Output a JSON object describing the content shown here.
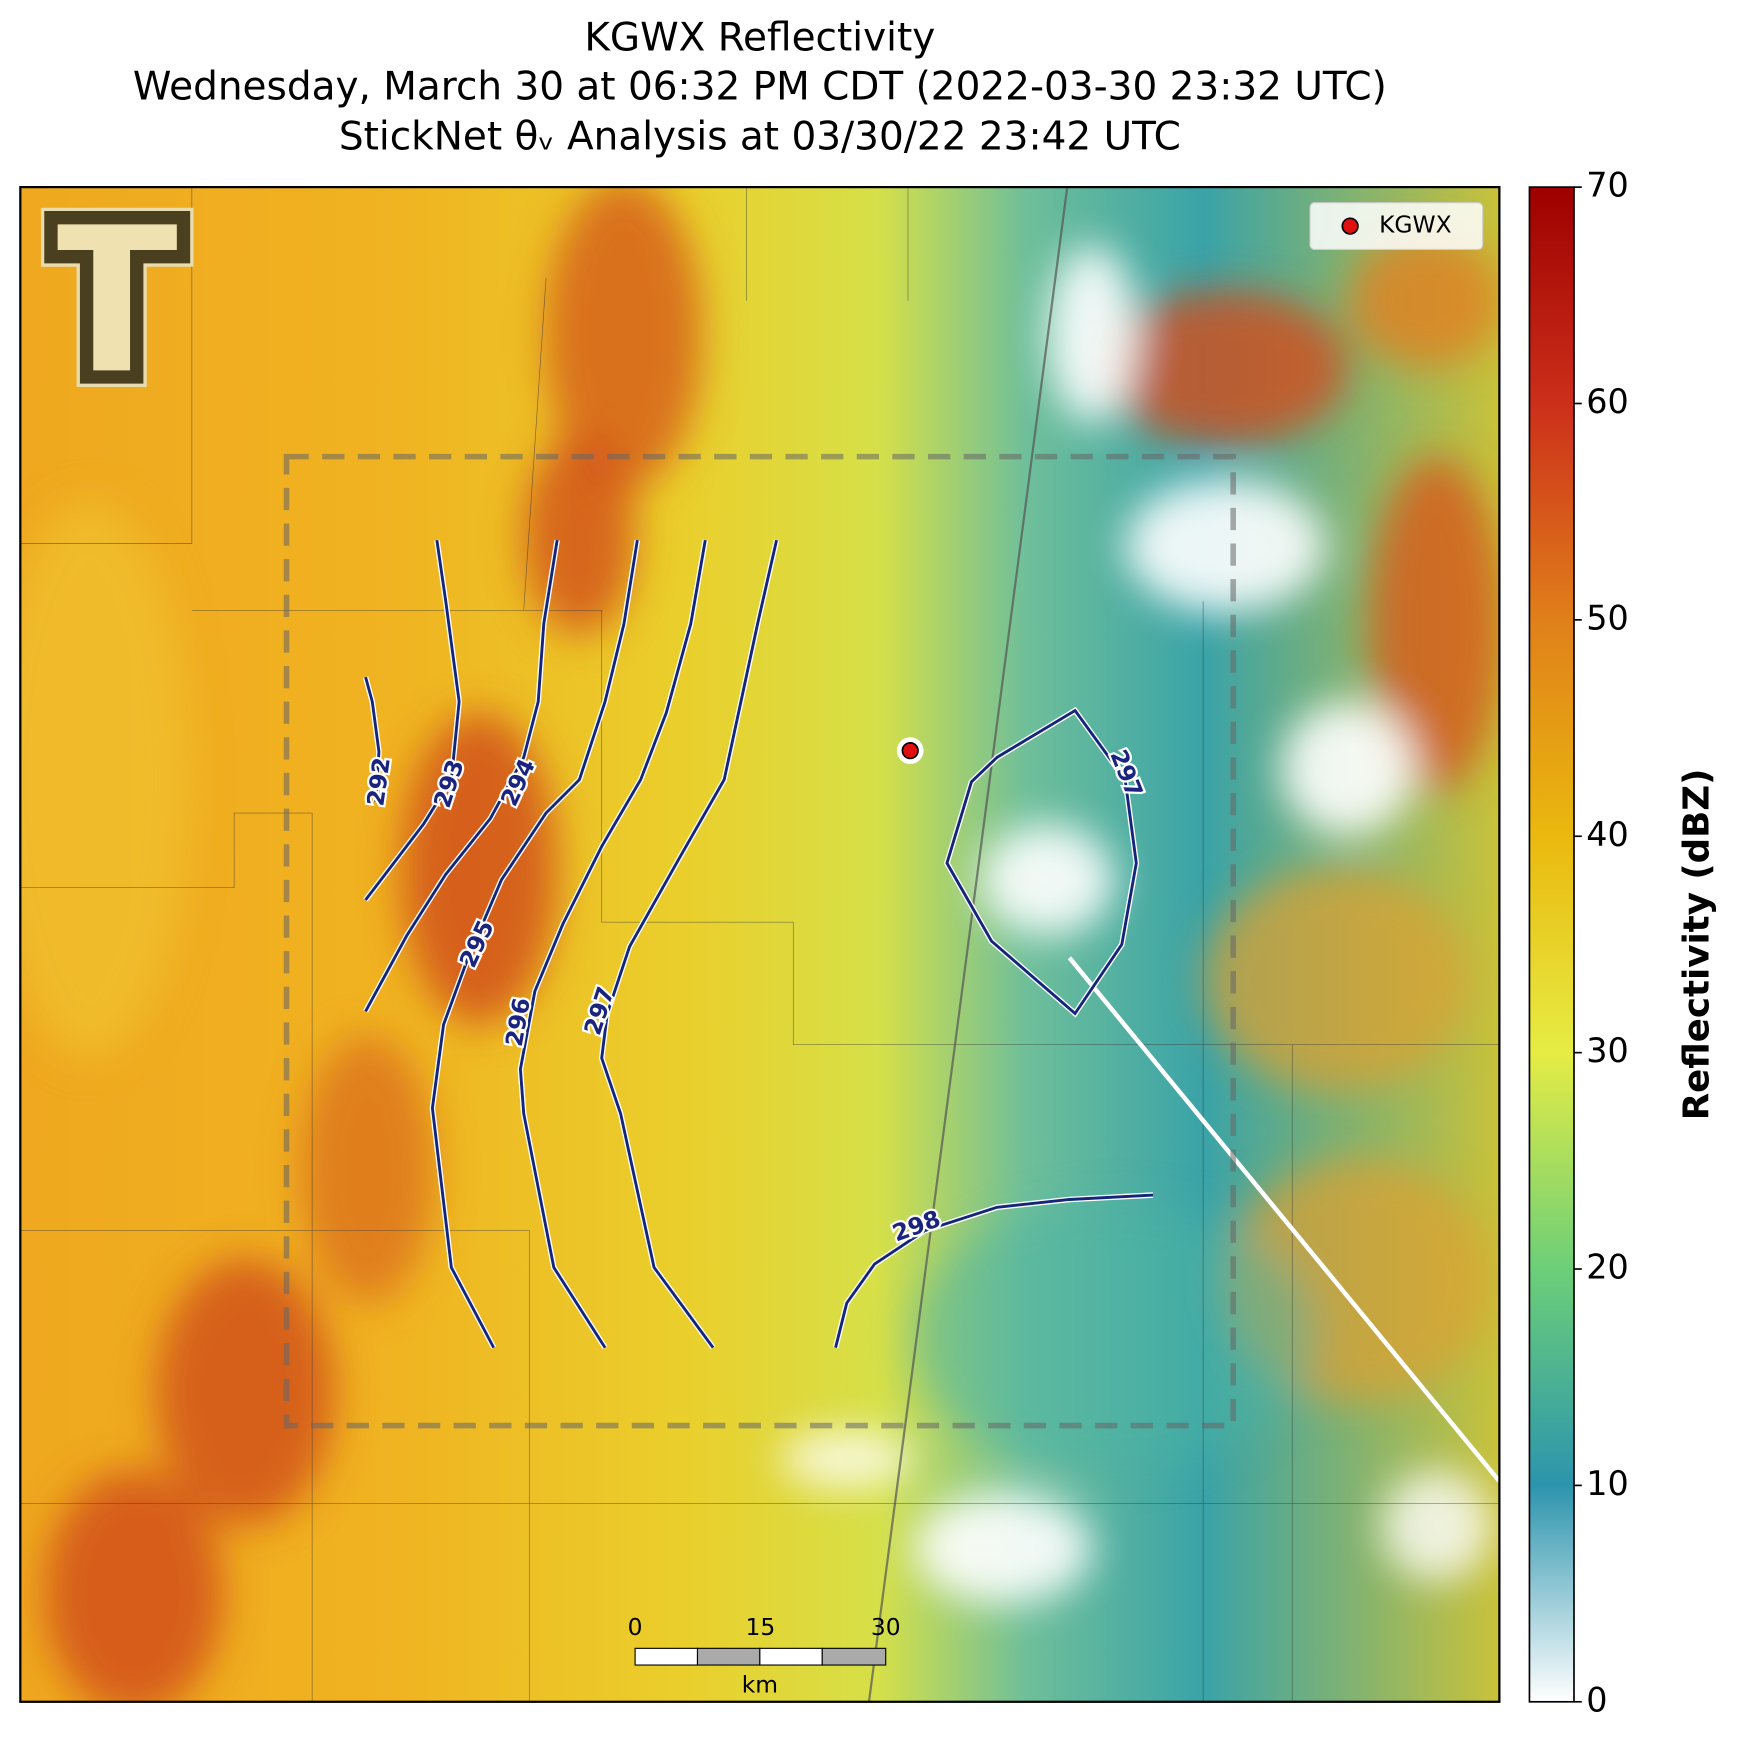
{
  "title": [
    "KGWX Reflectivity",
    "Wednesday, March 30 at 06:32 PM CDT (2022-03-30 23:32 UTC)",
    "StickNet θᵥ Analysis at 03/30/22 23:42 UTC"
  ],
  "colorbar": {
    "label": "Reflectivity (dBZ)",
    "lim": [
      0,
      70
    ],
    "ticks": [
      0,
      10,
      20,
      30,
      40,
      50,
      60,
      70
    ]
  },
  "legend": "KGWX",
  "contour_labels": [
    "292",
    "293",
    "294",
    "295",
    "296",
    "297",
    "297",
    "298"
  ],
  "scale_bar": {
    "ticks": [
      0,
      15,
      30
    ],
    "unit": "km"
  }
}
